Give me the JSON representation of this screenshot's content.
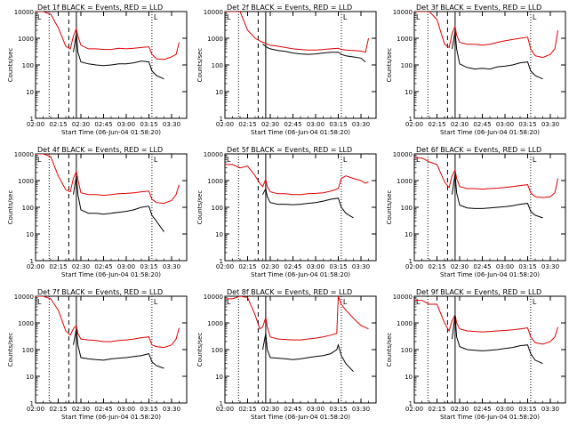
{
  "figure": {
    "series_names": [
      "BLACK = Events",
      "RED = LLD"
    ],
    "colors": {
      "events": "#000000",
      "lld": "#e00000",
      "axis": "#000000"
    },
    "y_axis": {
      "label": "Counts/sec",
      "scale": "log",
      "ylim": [
        1,
        10000
      ],
      "ticks": [
        1,
        10,
        100,
        1000,
        10000
      ],
      "tick_labels": [
        "1",
        "10",
        "100",
        "1000",
        "10000"
      ]
    },
    "x_axis": {
      "label": "Start Time (06-Jun-04 01:58:20)",
      "xlim": [
        "02:00",
        "03:40"
      ],
      "ticks": [
        "02:00",
        "02:15",
        "02:30",
        "02:45",
        "03:00",
        "03:15",
        "03:30"
      ]
    },
    "markers": {
      "dotted": [
        "02:09",
        "03:17"
      ],
      "dashed": [
        "02:22"
      ],
      "solid": [
        "02:27"
      ],
      "bracket_left_label": "L",
      "bracket_right_label": "L"
    }
  },
  "chart_data": [
    {
      "type": "line",
      "title": "Det 1f BLACK = Events, RED = LLD",
      "x": [
        "02:00",
        "02:05",
        "02:10",
        "02:15",
        "02:20",
        "02:23",
        "02:25",
        "02:27",
        "02:28",
        "02:30",
        "02:35",
        "02:40",
        "02:45",
        "02:50",
        "02:55",
        "03:00",
        "03:05",
        "03:10",
        "03:15",
        "03:17",
        "03:20",
        "03:25",
        "03:30",
        "03:33",
        "03:35",
        "03:37"
      ],
      "series": [
        {
          "name": "RED = LLD",
          "values": [
            10000,
            10000,
            8000,
            2500,
            500,
            400,
            1200,
            2300,
            1200,
            550,
            400,
            400,
            380,
            380,
            420,
            400,
            420,
            450,
            480,
            250,
            170,
            160,
            200,
            250,
            700,
            null
          ]
        },
        {
          "name": "BLACK = Events",
          "values": [
            null,
            null,
            null,
            null,
            null,
            null,
            300,
            1500,
            300,
            130,
            110,
            100,
            95,
            100,
            110,
            110,
            120,
            140,
            130,
            60,
            40,
            30,
            null,
            null,
            null,
            null
          ]
        }
      ],
      "ylim": [
        1,
        10000
      ]
    },
    {
      "type": "line",
      "title": "Det 2f BLACK = Events, RED = LLD",
      "x": [
        "02:00",
        "02:05",
        "02:10",
        "02:15",
        "02:20",
        "02:23",
        "02:25",
        "02:27",
        "02:28",
        "02:30",
        "02:35",
        "02:40",
        "02:45",
        "02:50",
        "02:55",
        "03:00",
        "03:05",
        "03:10",
        "03:15",
        "03:17",
        "03:20",
        "03:25",
        "03:30",
        "03:33",
        "03:35",
        "03:37"
      ],
      "series": [
        {
          "name": "RED = LLD",
          "values": [
            10000,
            10000,
            10000,
            2000,
            1000,
            800,
            700,
            650,
            600,
            550,
            500,
            450,
            400,
            380,
            360,
            360,
            380,
            400,
            420,
            380,
            360,
            350,
            330,
            300,
            1000,
            null
          ]
        },
        {
          "name": "BLACK = Events",
          "values": [
            null,
            null,
            null,
            null,
            null,
            null,
            600,
            500,
            450,
            400,
            350,
            320,
            280,
            260,
            250,
            260,
            280,
            300,
            300,
            250,
            220,
            200,
            180,
            130,
            null,
            null
          ]
        }
      ],
      "ylim": [
        1,
        10000
      ]
    },
    {
      "type": "line",
      "title": "Det 3f BLACK = Events, RED = LLD",
      "x": [
        "02:00",
        "02:05",
        "02:10",
        "02:15",
        "02:20",
        "02:23",
        "02:25",
        "02:27",
        "02:28",
        "02:30",
        "02:35",
        "02:40",
        "02:45",
        "02:50",
        "02:55",
        "03:00",
        "03:05",
        "03:10",
        "03:15",
        "03:17",
        "03:20",
        "03:25",
        "03:30",
        "03:33",
        "03:35",
        "03:37"
      ],
      "series": [
        {
          "name": "RED = LLD",
          "values": [
            10000,
            10000,
            10000,
            5000,
            600,
            450,
            1500,
            2800,
            1300,
            700,
            600,
            600,
            550,
            600,
            700,
            800,
            900,
            1000,
            1100,
            400,
            220,
            190,
            250,
            400,
            2000,
            null
          ]
        },
        {
          "name": "BLACK = Events",
          "values": [
            null,
            null,
            null,
            null,
            null,
            null,
            400,
            1800,
            400,
            110,
            80,
            70,
            75,
            70,
            85,
            90,
            100,
            120,
            130,
            60,
            40,
            30,
            null,
            null,
            null,
            null
          ]
        }
      ],
      "ylim": [
        1,
        10000
      ]
    },
    {
      "type": "line",
      "title": "Det 4f BLACK = Events, RED = LLD",
      "x": [
        "02:00",
        "02:05",
        "02:10",
        "02:15",
        "02:20",
        "02:23",
        "02:25",
        "02:27",
        "02:28",
        "02:30",
        "02:35",
        "02:40",
        "02:45",
        "02:50",
        "02:55",
        "03:00",
        "03:05",
        "03:10",
        "03:15",
        "03:17",
        "03:20",
        "03:25",
        "03:30",
        "03:33",
        "03:35",
        "03:37"
      ],
      "series": [
        {
          "name": "RED = LLD",
          "values": [
            10000,
            10000,
            8000,
            1500,
            450,
            380,
            1200,
            2200,
            1100,
            350,
            300,
            300,
            280,
            300,
            320,
            330,
            350,
            380,
            400,
            200,
            150,
            140,
            180,
            300,
            700,
            null
          ]
        },
        {
          "name": "BLACK = Events",
          "values": [
            null,
            null,
            null,
            null,
            null,
            null,
            300,
            1500,
            300,
            80,
            60,
            60,
            55,
            60,
            65,
            70,
            80,
            100,
            110,
            50,
            30,
            12,
            null,
            null,
            null,
            null
          ]
        }
      ],
      "ylim": [
        1,
        10000
      ]
    },
    {
      "type": "line",
      "title": "Det 5f BLACK = Events, RED = LLD",
      "x": [
        "02:00",
        "02:05",
        "02:10",
        "02:15",
        "02:20",
        "02:23",
        "02:25",
        "02:27",
        "02:28",
        "02:30",
        "02:35",
        "02:40",
        "02:45",
        "02:50",
        "02:55",
        "03:00",
        "03:05",
        "03:10",
        "03:15",
        "03:17",
        "03:20",
        "03:25",
        "03:30",
        "03:33",
        "03:35",
        "03:37"
      ],
      "series": [
        {
          "name": "RED = LLD",
          "values": [
            4000,
            4000,
            3000,
            3500,
            1500,
            800,
            600,
            1100,
            600,
            380,
            320,
            320,
            300,
            300,
            320,
            330,
            350,
            400,
            500,
            1200,
            1500,
            1200,
            1000,
            800,
            900,
            null
          ]
        },
        {
          "name": "BLACK = Events",
          "values": [
            null,
            null,
            null,
            null,
            null,
            null,
            300,
            500,
            250,
            150,
            130,
            130,
            125,
            130,
            140,
            150,
            170,
            200,
            220,
            100,
            60,
            40,
            null,
            null,
            null,
            null
          ]
        }
      ],
      "ylim": [
        1,
        10000
      ]
    },
    {
      "type": "line",
      "title": "Det 6f BLACK = Events, RED = LLD",
      "x": [
        "02:00",
        "02:05",
        "02:10",
        "02:15",
        "02:20",
        "02:23",
        "02:25",
        "02:27",
        "02:28",
        "02:30",
        "02:35",
        "02:40",
        "02:45",
        "02:50",
        "02:55",
        "03:00",
        "03:05",
        "03:10",
        "03:15",
        "03:17",
        "03:20",
        "03:25",
        "03:30",
        "03:33",
        "03:35",
        "03:37"
      ],
      "series": [
        {
          "name": "RED = LLD",
          "values": [
            7000,
            7000,
            5000,
            4000,
            900,
            550,
            1500,
            2500,
            1200,
            600,
            500,
            500,
            480,
            500,
            520,
            550,
            600,
            650,
            700,
            350,
            250,
            230,
            250,
            350,
            1200,
            null
          ]
        },
        {
          "name": "BLACK = Events",
          "values": [
            null,
            null,
            null,
            null,
            null,
            null,
            300,
            1800,
            350,
            120,
            95,
            90,
            90,
            95,
            100,
            105,
            115,
            130,
            140,
            70,
            50,
            40,
            null,
            null,
            null,
            null
          ]
        }
      ],
      "ylim": [
        1,
        10000
      ]
    },
    {
      "type": "line",
      "title": "Det 7f BLACK = Events, RED = LLD",
      "x": [
        "02:00",
        "02:05",
        "02:10",
        "02:15",
        "02:20",
        "02:23",
        "02:25",
        "02:27",
        "02:28",
        "02:30",
        "02:35",
        "02:40",
        "02:45",
        "02:50",
        "02:55",
        "03:00",
        "03:05",
        "03:10",
        "03:15",
        "03:17",
        "03:20",
        "03:25",
        "03:30",
        "03:33",
        "03:35",
        "03:37"
      ],
      "series": [
        {
          "name": "RED = LLD",
          "values": [
            10000,
            10000,
            8000,
            3000,
            500,
            350,
            600,
            800,
            400,
            250,
            230,
            220,
            200,
            200,
            220,
            230,
            250,
            280,
            300,
            150,
            130,
            120,
            150,
            250,
            650,
            null
          ]
        },
        {
          "name": "BLACK = Events",
          "values": [
            null,
            null,
            null,
            null,
            null,
            null,
            150,
            600,
            150,
            50,
            45,
            42,
            40,
            45,
            48,
            50,
            55,
            60,
            70,
            35,
            25,
            20,
            null,
            null,
            null,
            null
          ]
        }
      ],
      "ylim": [
        1,
        10000
      ]
    },
    {
      "type": "line",
      "title": "Det 8f BLACK = Events, RED = LLD",
      "x": [
        "02:00",
        "02:05",
        "02:10",
        "02:15",
        "02:20",
        "02:23",
        "02:25",
        "02:27",
        "02:28",
        "02:30",
        "02:35",
        "02:40",
        "02:45",
        "02:50",
        "02:55",
        "03:00",
        "03:05",
        "03:10",
        "03:14",
        "03:15",
        "03:17",
        "03:20",
        "03:25",
        "03:30",
        "03:35",
        "03:37"
      ],
      "series": [
        {
          "name": "RED = LLD",
          "values": [
            8000,
            8000,
            10000,
            9000,
            2000,
            600,
            700,
            1600,
            700,
            300,
            250,
            240,
            230,
            230,
            250,
            270,
            300,
            350,
            400,
            10000,
            5000,
            3000,
            1500,
            800,
            600,
            null
          ]
        },
        {
          "name": "BLACK = Events",
          "values": [
            null,
            null,
            null,
            null,
            null,
            null,
            100,
            400,
            100,
            50,
            48,
            45,
            42,
            45,
            50,
            55,
            60,
            70,
            100,
            150,
            60,
            30,
            15,
            null,
            null,
            null
          ]
        }
      ],
      "ylim": [
        1,
        10000
      ]
    },
    {
      "type": "line",
      "title": "Det 9f BLACK = Events, RED = LLD",
      "x": [
        "02:00",
        "02:05",
        "02:10",
        "02:15",
        "02:20",
        "02:23",
        "02:25",
        "02:27",
        "02:28",
        "02:30",
        "02:35",
        "02:40",
        "02:45",
        "02:50",
        "02:55",
        "03:00",
        "03:05",
        "03:10",
        "03:15",
        "03:17",
        "03:20",
        "03:25",
        "03:30",
        "03:33",
        "03:35",
        "03:37"
      ],
      "series": [
        {
          "name": "RED = LLD",
          "values": [
            7000,
            7000,
            5000,
            5000,
            1000,
            500,
            1200,
            2000,
            1000,
            600,
            500,
            480,
            460,
            480,
            500,
            520,
            550,
            600,
            650,
            300,
            180,
            160,
            200,
            300,
            700,
            null
          ]
        },
        {
          "name": "BLACK = Events",
          "values": [
            null,
            null,
            null,
            null,
            null,
            null,
            250,
            2000,
            300,
            130,
            100,
            95,
            90,
            95,
            100,
            110,
            120,
            140,
            150,
            70,
            40,
            30,
            null,
            null,
            null,
            null
          ]
        }
      ],
      "ylim": [
        1,
        10000
      ]
    }
  ]
}
